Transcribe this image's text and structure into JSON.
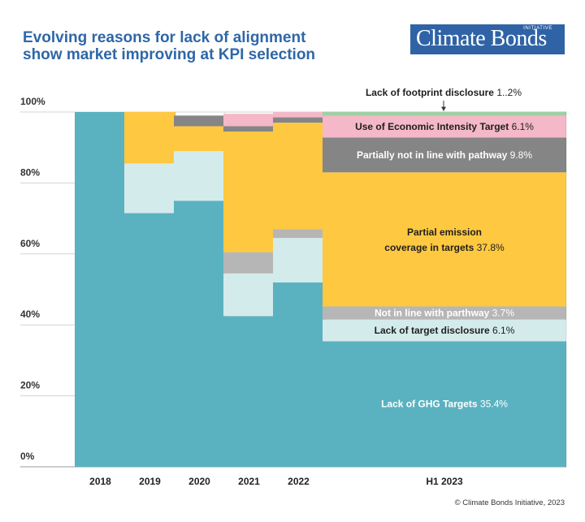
{
  "header": {
    "title_line1": "Evolving reasons for lack of alignment",
    "title_line2": "show market improving at KPI selection"
  },
  "logo": {
    "name": "Climate Bonds",
    "sub": "INITIATIVE",
    "bg_color": "#2f63a6"
  },
  "copyright": "© Climate Bonds Initiative, 2023",
  "chart_data": {
    "type": "bar",
    "stacked": true,
    "categories": [
      "2018",
      "2019",
      "2020",
      "2021",
      "2022",
      "H1 2023"
    ],
    "ylim": [
      0,
      100
    ],
    "yticks": [
      "0%",
      "20%",
      "40%",
      "60%",
      "80%",
      "100%"
    ],
    "grid": true,
    "series": [
      {
        "name": "Lack of GHG Targets",
        "color": "#5ab2c0",
        "values": [
          100,
          71.5,
          75,
          42.5,
          52,
          35.4
        ],
        "label_value": "35.4%"
      },
      {
        "name": "Lack of target disclosure",
        "color": "#d4ebeb",
        "values": [
          0,
          14,
          14,
          12,
          12.5,
          6.1
        ],
        "label_value": "6.1%"
      },
      {
        "name": "Not in line with parthway",
        "color": "#b6b6b6",
        "values": [
          0,
          0,
          0,
          6,
          2.5,
          3.7
        ],
        "label_value": "3.7%"
      },
      {
        "name": "Partial emission coverage in targets",
        "color": "#fec841",
        "values": [
          0,
          14.5,
          7,
          34,
          30,
          37.8
        ],
        "label_value": "37.8%"
      },
      {
        "name": "Partially not in line with pathway",
        "color": "#858585",
        "values": [
          0,
          0,
          3,
          1.5,
          1.5,
          9.8
        ],
        "label_value": "9.8%"
      },
      {
        "name": "Use of Economic Intensity Target",
        "color": "#f4b8c8",
        "values": [
          0,
          0,
          0,
          3.5,
          1.5,
          6.1
        ],
        "label_value": "6.1%"
      },
      {
        "name": "Lack of footprint disclosure",
        "color": "#9fd0a4",
        "values": [
          0,
          0,
          0,
          0,
          0,
          1.2
        ],
        "label_value": "1..2%"
      }
    ]
  }
}
